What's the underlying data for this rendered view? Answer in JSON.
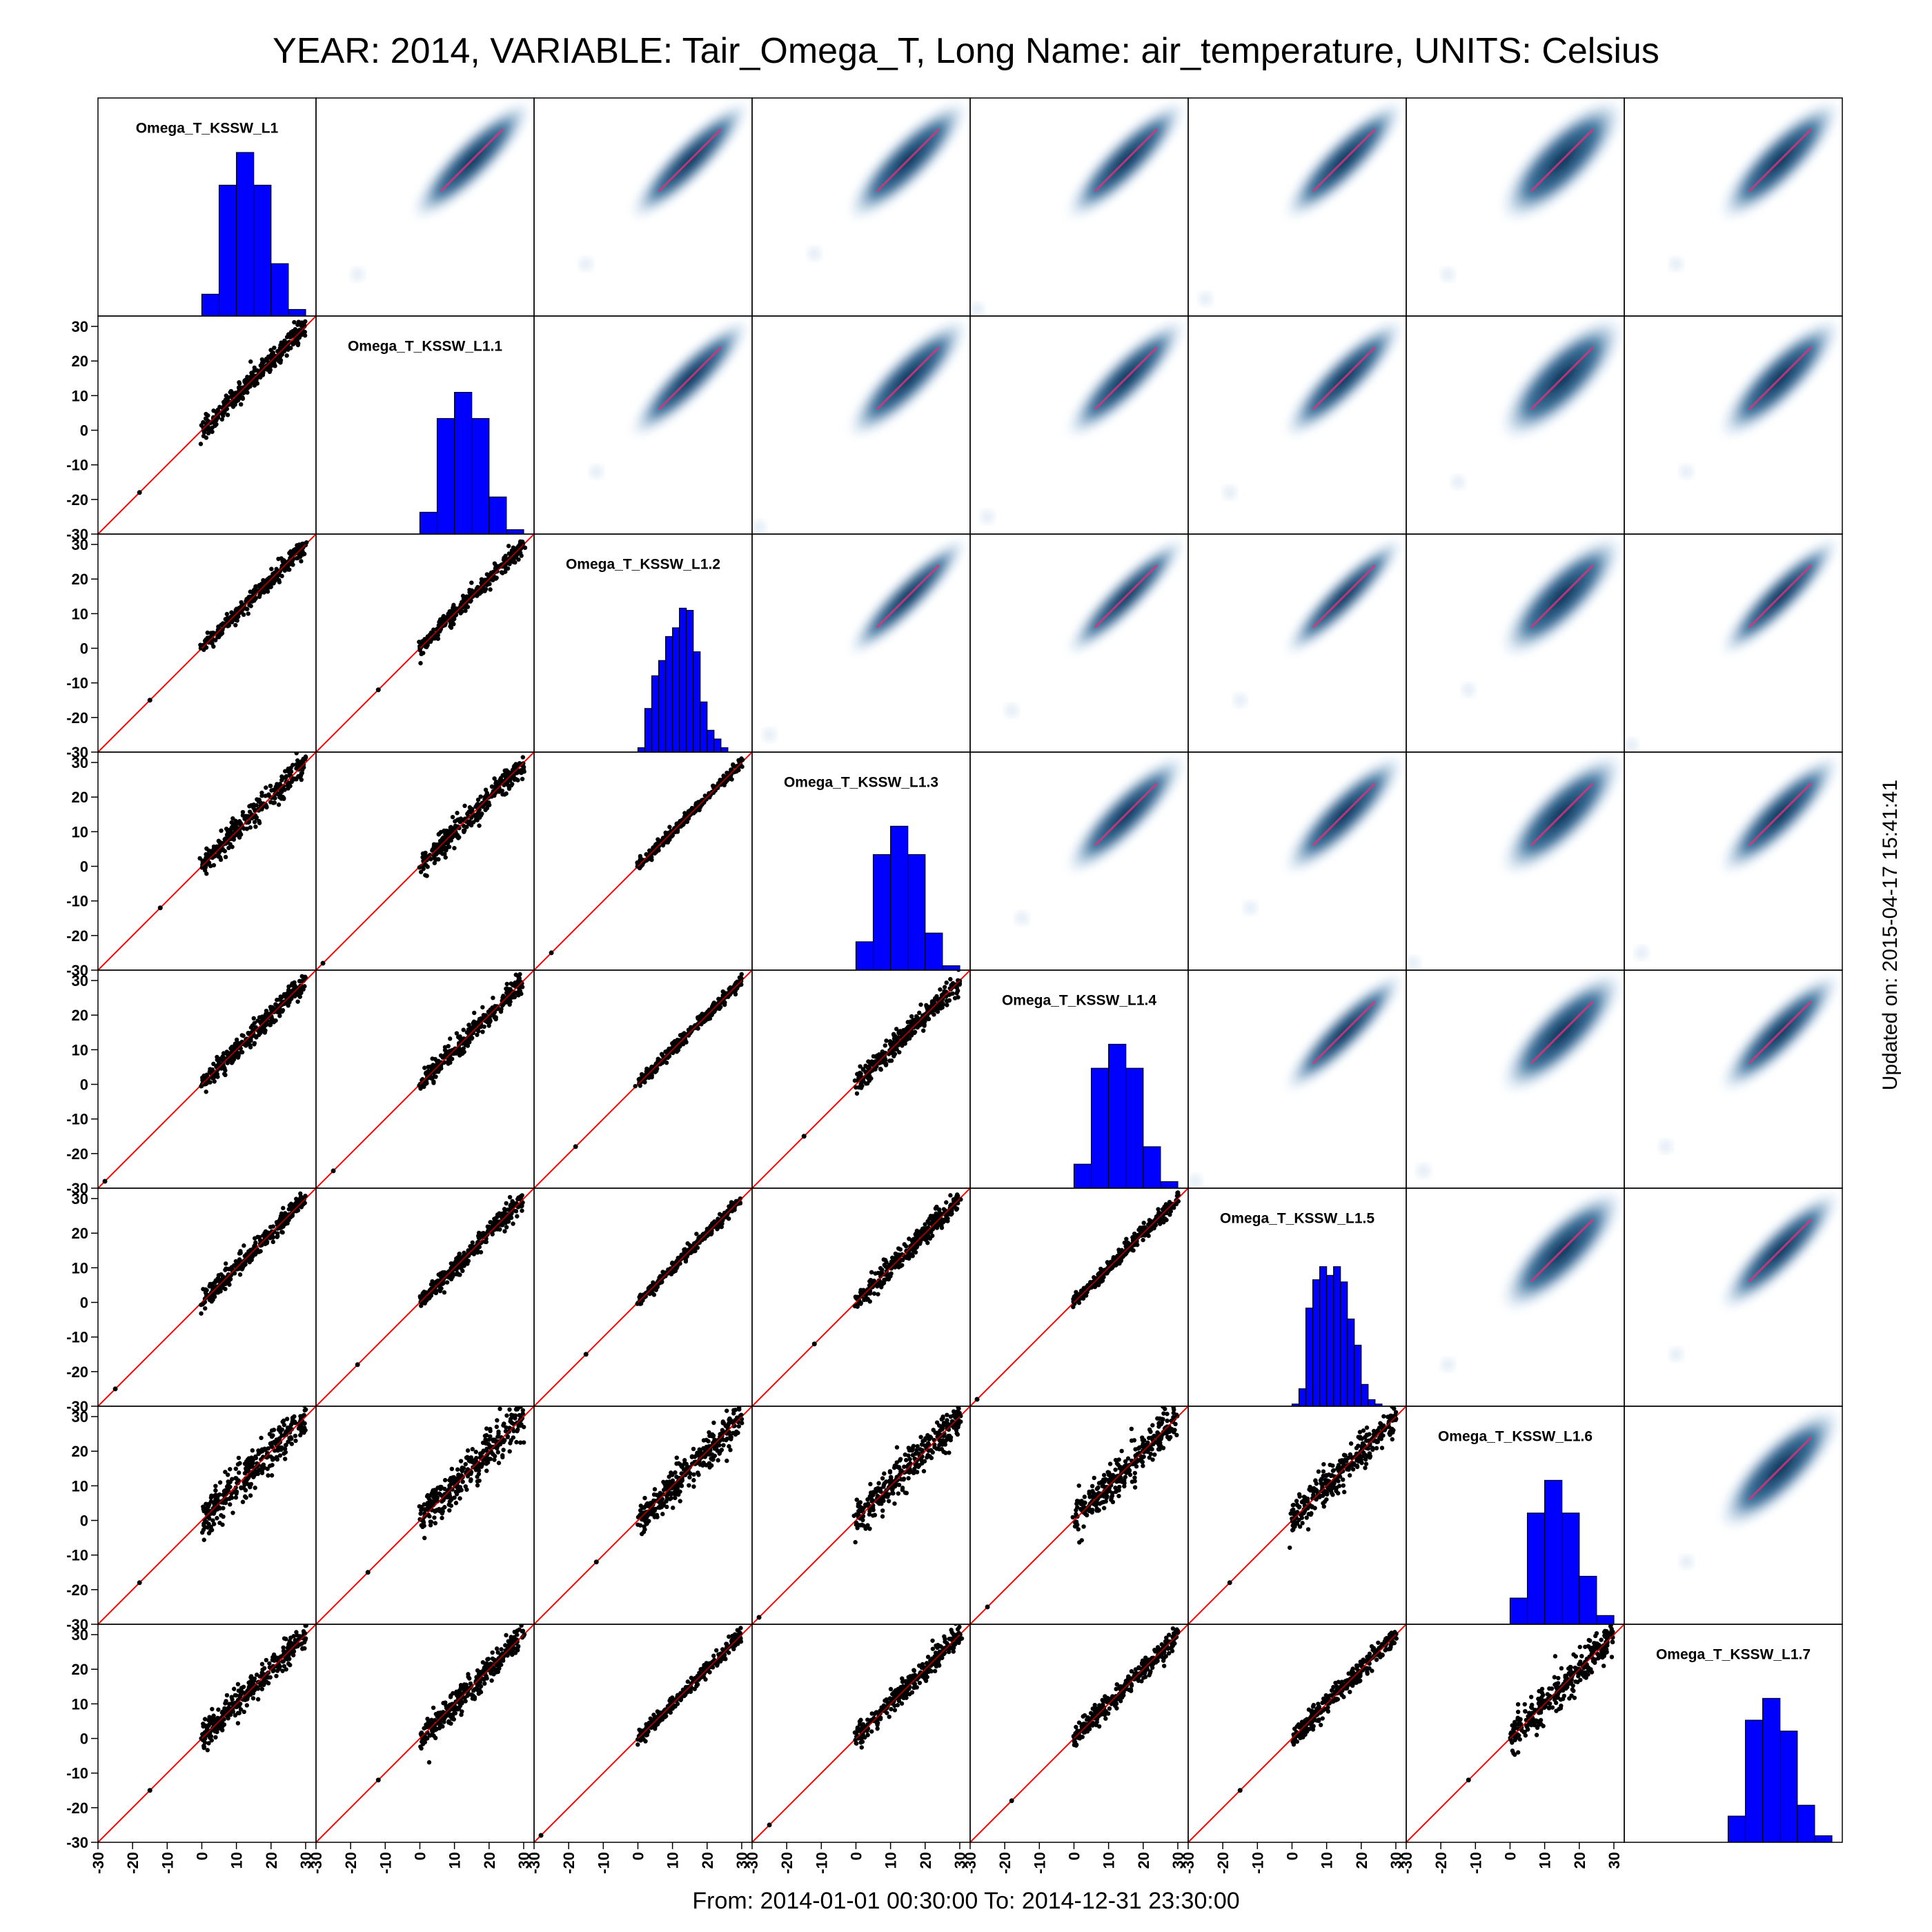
{
  "title": "YEAR: 2014, VARIABLE: Tair_Omega_T, Long Name: air_temperature, UNITS: Celsius",
  "footer": "From: 2014-01-01 00:30:00 To: 2014-12-31 23:30:00",
  "updated": "Updated on: 2015-04-17 15:41:41",
  "colors": {
    "histogram_fill": "#0000ff",
    "scatter_points": "#000000",
    "identity_line": "#ff0000",
    "density_dark": "#0a2a4e",
    "density_light": "#c6dbef",
    "density_center": "#e0327a"
  },
  "chart_data": {
    "type": "scatter",
    "subtype": "scatterplot-matrix",
    "lower_panels": "scatter with 1:1 line",
    "upper_panels": "smoothed density scatter",
    "diagonal_panels": "histogram",
    "variables": [
      "Omega_T_KSSW_L1",
      "Omega_T_KSSW_L1.1",
      "Omega_T_KSSW_L1.2",
      "Omega_T_KSSW_L1.3",
      "Omega_T_KSSW_L1.4",
      "Omega_T_KSSW_L1.5",
      "Omega_T_KSSW_L1.6",
      "Omega_T_KSSW_L1.7"
    ],
    "xlim": [
      -30,
      33
    ],
    "ylim": [
      -30,
      33
    ],
    "ticks": [
      -30,
      -20,
      -10,
      0,
      10,
      20,
      30
    ],
    "tick_labels": [
      "-30",
      "-20",
      "-10",
      "0",
      "10",
      "20",
      "30"
    ],
    "histograms": [
      {
        "bin_width": 5,
        "bins": [
          [
            0,
            0.1
          ],
          [
            5,
            0.6
          ],
          [
            10,
            0.75
          ],
          [
            15,
            0.6
          ],
          [
            20,
            0.24
          ],
          [
            25,
            0.03
          ]
        ]
      },
      {
        "bin_width": 5,
        "bins": [
          [
            0,
            0.1
          ],
          [
            5,
            0.53
          ],
          [
            10,
            0.65
          ],
          [
            15,
            0.53
          ],
          [
            20,
            0.17
          ],
          [
            25,
            0.02
          ]
        ]
      },
      {
        "bin_width": 2,
        "bins": [
          [
            0,
            0.02
          ],
          [
            2,
            0.2
          ],
          [
            4,
            0.35
          ],
          [
            6,
            0.42
          ],
          [
            8,
            0.53
          ],
          [
            10,
            0.57
          ],
          [
            12,
            0.66
          ],
          [
            14,
            0.65
          ],
          [
            16,
            0.46
          ],
          [
            18,
            0.23
          ],
          [
            20,
            0.1
          ],
          [
            22,
            0.06
          ],
          [
            24,
            0.02
          ]
        ]
      },
      {
        "bin_width": 5,
        "bins": [
          [
            0,
            0.13
          ],
          [
            5,
            0.53
          ],
          [
            10,
            0.66
          ],
          [
            15,
            0.53
          ],
          [
            20,
            0.17
          ],
          [
            25,
            0.02
          ]
        ]
      },
      {
        "bin_width": 5,
        "bins": [
          [
            0,
            0.11
          ],
          [
            5,
            0.55
          ],
          [
            10,
            0.66
          ],
          [
            15,
            0.55
          ],
          [
            20,
            0.19
          ],
          [
            25,
            0.03
          ]
        ]
      },
      {
        "bin_width": 2,
        "bins": [
          [
            0,
            0.01
          ],
          [
            2,
            0.08
          ],
          [
            4,
            0.45
          ],
          [
            6,
            0.58
          ],
          [
            8,
            0.64
          ],
          [
            10,
            0.6
          ],
          [
            12,
            0.64
          ],
          [
            14,
            0.57
          ],
          [
            16,
            0.4
          ],
          [
            18,
            0.28
          ],
          [
            20,
            0.1
          ],
          [
            22,
            0.03
          ],
          [
            24,
            0.01
          ]
        ]
      },
      {
        "bin_width": 5,
        "bins": [
          [
            0,
            0.12
          ],
          [
            5,
            0.51
          ],
          [
            10,
            0.66
          ],
          [
            15,
            0.51
          ],
          [
            20,
            0.22
          ],
          [
            25,
            0.04
          ]
        ]
      },
      {
        "bin_width": 5,
        "bins": [
          [
            0,
            0.12
          ],
          [
            5,
            0.56
          ],
          [
            10,
            0.66
          ],
          [
            15,
            0.51
          ],
          [
            20,
            0.17
          ],
          [
            25,
            0.03
          ]
        ]
      }
    ],
    "scatter_spread": [
      [
        0,
        1.5,
        1.2,
        1.8,
        1.5,
        1.5,
        3.0,
        2.0
      ],
      [
        1.5,
        0,
        1.2,
        1.8,
        1.5,
        1.5,
        3.0,
        2.0
      ],
      [
        1.2,
        1.2,
        0,
        0.8,
        0.8,
        0.8,
        2.5,
        1.0
      ],
      [
        1.8,
        1.8,
        0.8,
        0,
        1.6,
        1.6,
        2.6,
        1.6
      ],
      [
        1.5,
        1.5,
        0.8,
        1.6,
        0,
        1.0,
        2.6,
        1.5
      ],
      [
        1.5,
        1.5,
        0.8,
        1.6,
        1.0,
        0,
        2.6,
        1.5
      ],
      [
        3.0,
        3.0,
        2.5,
        2.6,
        2.6,
        2.6,
        0,
        2.5
      ],
      [
        2.0,
        2.0,
        1.0,
        1.6,
        1.5,
        1.5,
        2.5,
        0
      ]
    ],
    "outliers": [
      {
        "x": -25,
        "y": -25
      },
      {
        "x": -18,
        "y": -18
      },
      {
        "x": -15,
        "y": -15
      },
      {
        "x": -12,
        "y": -12
      },
      {
        "x": -28,
        "y": -28
      }
    ]
  }
}
